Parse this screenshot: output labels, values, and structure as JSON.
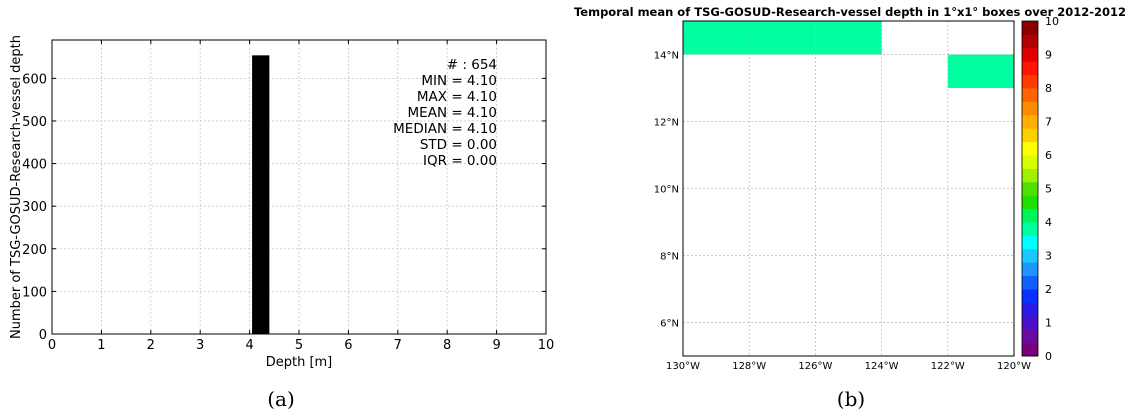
{
  "panels": {
    "a": {
      "caption": "(a)"
    },
    "b": {
      "caption": "(b)"
    }
  },
  "chart_data": [
    {
      "type": "bar",
      "xlabel": "Depth [m]",
      "ylabel": "Number of TSG-GOSUD-Research-vessel depth",
      "xlim": [
        0,
        10
      ],
      "ylim": [
        0,
        690
      ],
      "xticks": [
        "0",
        "1",
        "2",
        "3",
        "4",
        "5",
        "6",
        "7",
        "8",
        "9",
        "10"
      ],
      "yticks": [
        "0",
        "100",
        "200",
        "300",
        "400",
        "500",
        "600"
      ],
      "grid": true,
      "bars": [
        {
          "x0": 4.05,
          "x1": 4.4,
          "value": 654,
          "color": "#000000"
        }
      ],
      "stats": [
        {
          "label": "# : 654"
        },
        {
          "label": "MIN = 4.10"
        },
        {
          "label": "MAX =  4.10"
        },
        {
          "label": "MEAN = 4.10"
        },
        {
          "label": "MEDIAN = 4.10"
        },
        {
          "label": "STD = 0.00"
        },
        {
          "label": "IQR = 0.00"
        }
      ]
    },
    {
      "type": "heatmap",
      "title": "Temporal mean of TSG-GOSUD-Research-vessel depth in 1°x1° boxes over 2012-2012",
      "lon_range": [
        -130,
        -120
      ],
      "lat_range": [
        5,
        15
      ],
      "xticks": [
        {
          "v": -130,
          "label": "130°W"
        },
        {
          "v": -128,
          "label": "128°W"
        },
        {
          "v": -126,
          "label": "126°W"
        },
        {
          "v": -124,
          "label": "124°W"
        },
        {
          "v": -122,
          "label": "122°W"
        },
        {
          "v": -120,
          "label": "120°W"
        }
      ],
      "yticks": [
        {
          "v": 6,
          "label": "6°N"
        },
        {
          "v": 8,
          "label": "8°N"
        },
        {
          "v": 10,
          "label": "10°N"
        },
        {
          "v": 12,
          "label": "12°N"
        },
        {
          "v": 14,
          "label": "14°N"
        }
      ],
      "grid": true,
      "cells": [
        {
          "lon0": -130,
          "lon1": -124,
          "lat0": 14,
          "lat1": 15,
          "value": 4.1
        },
        {
          "lon0": -122,
          "lon1": -120,
          "lat0": 13,
          "lat1": 14,
          "value": 4.1
        }
      ],
      "colorbar": {
        "min": 0,
        "max": 10,
        "ticks": [
          "0",
          "1",
          "2",
          "3",
          "4",
          "5",
          "6",
          "7",
          "8",
          "9",
          "10"
        ],
        "colors": [
          "#7a007a",
          "#6a0aa0",
          "#4a10c8",
          "#2a1ae6",
          "#0a30ff",
          "#1060ff",
          "#1c96ff",
          "#18c8ff",
          "#00ffff",
          "#00ffa0",
          "#00f55a",
          "#20e000",
          "#50e000",
          "#a0f000",
          "#d8ff00",
          "#ffff00",
          "#ffd000",
          "#ffb000",
          "#ff8c00",
          "#ff6400",
          "#ff3c00",
          "#ff1400",
          "#e00000",
          "#b00000",
          "#8a0000"
        ],
        "cell_color": "#00ffa0"
      }
    }
  ]
}
